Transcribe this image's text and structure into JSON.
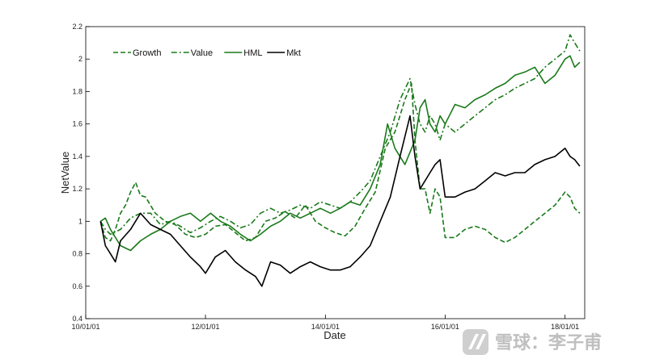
{
  "chart_data": {
    "type": "line",
    "xlabel": "Date",
    "ylabel": "NetValue",
    "xlim": [
      "2010-01-01",
      "2018-05-01"
    ],
    "ylim": [
      0.4,
      2.2
    ],
    "x_ticks": [
      {
        "date": "2010-01-01",
        "label": "10/01/01"
      },
      {
        "date": "2012-01-01",
        "label": "12/01/01"
      },
      {
        "date": "2014-01-01",
        "label": "14/01/01"
      },
      {
        "date": "2016-01-01",
        "label": "16/01/01"
      },
      {
        "date": "2018-01-01",
        "label": "18/01/01"
      }
    ],
    "y_ticks": [
      "0.4",
      "0.6",
      "0.8",
      "1",
      "1.2",
      "1.4",
      "1.6",
      "1.8",
      "2",
      "2.2"
    ],
    "grid": false,
    "legend_position": "top-left",
    "series": [
      {
        "name": "Growth",
        "style": "dashed",
        "color": "#1a7a1a",
        "points": [
          [
            "2010-04-01",
            1.0
          ],
          [
            "2010-05-01",
            0.9
          ],
          [
            "2010-06-01",
            0.88
          ],
          [
            "2010-07-01",
            0.95
          ],
          [
            "2010-08-01",
            1.05
          ],
          [
            "2010-09-01",
            1.1
          ],
          [
            "2010-10-01",
            1.18
          ],
          [
            "2010-11-01",
            1.24
          ],
          [
            "2010-12-01",
            1.16
          ],
          [
            "2011-01-01",
            1.15
          ],
          [
            "2011-03-01",
            1.05
          ],
          [
            "2011-05-01",
            1.0
          ],
          [
            "2011-07-01",
            0.98
          ],
          [
            "2011-09-01",
            0.92
          ],
          [
            "2011-11-01",
            0.9
          ],
          [
            "2012-01-01",
            0.92
          ],
          [
            "2012-03-01",
            0.97
          ],
          [
            "2012-05-01",
            0.98
          ],
          [
            "2012-07-01",
            0.93
          ],
          [
            "2012-09-01",
            0.88
          ],
          [
            "2012-11-01",
            0.9
          ],
          [
            "2013-01-01",
            1.0
          ],
          [
            "2013-03-01",
            1.02
          ],
          [
            "2013-05-01",
            1.06
          ],
          [
            "2013-07-01",
            1.02
          ],
          [
            "2013-09-01",
            1.1
          ],
          [
            "2013-11-01",
            1.0
          ],
          [
            "2014-01-01",
            0.96
          ],
          [
            "2014-03-01",
            0.93
          ],
          [
            "2014-05-01",
            0.91
          ],
          [
            "2014-07-01",
            0.97
          ],
          [
            "2014-09-01",
            1.08
          ],
          [
            "2014-11-01",
            1.18
          ],
          [
            "2015-01-01",
            1.45
          ],
          [
            "2015-03-01",
            1.55
          ],
          [
            "2015-05-01",
            1.75
          ],
          [
            "2015-06-10",
            1.85
          ],
          [
            "2015-07-01",
            1.5
          ],
          [
            "2015-08-01",
            1.2
          ],
          [
            "2015-09-01",
            1.2
          ],
          [
            "2015-10-01",
            1.05
          ],
          [
            "2015-11-01",
            1.2
          ],
          [
            "2015-12-01",
            1.15
          ],
          [
            "2016-01-01",
            0.9
          ],
          [
            "2016-03-01",
            0.9
          ],
          [
            "2016-05-01",
            0.95
          ],
          [
            "2016-07-01",
            0.97
          ],
          [
            "2016-09-01",
            0.95
          ],
          [
            "2016-11-01",
            0.9
          ],
          [
            "2017-01-01",
            0.87
          ],
          [
            "2017-03-01",
            0.9
          ],
          [
            "2017-05-01",
            0.95
          ],
          [
            "2017-07-01",
            1.0
          ],
          [
            "2017-09-01",
            1.05
          ],
          [
            "2017-11-01",
            1.1
          ],
          [
            "2018-01-01",
            1.18
          ],
          [
            "2018-02-01",
            1.15
          ],
          [
            "2018-03-01",
            1.08
          ],
          [
            "2018-04-01",
            1.05
          ]
        ]
      },
      {
        "name": "Value",
        "style": "dashdot",
        "color": "#1a7a1a",
        "points": [
          [
            "2010-04-01",
            1.0
          ],
          [
            "2010-05-01",
            0.95
          ],
          [
            "2010-06-01",
            0.92
          ],
          [
            "2010-08-01",
            0.95
          ],
          [
            "2010-10-01",
            1.02
          ],
          [
            "2010-12-01",
            1.05
          ],
          [
            "2011-02-01",
            1.05
          ],
          [
            "2011-04-01",
            0.98
          ],
          [
            "2011-06-01",
            1.0
          ],
          [
            "2011-08-01",
            0.97
          ],
          [
            "2011-10-01",
            0.93
          ],
          [
            "2011-12-01",
            0.96
          ],
          [
            "2012-02-01",
            1.0
          ],
          [
            "2012-04-01",
            1.03
          ],
          [
            "2012-06-01",
            1.0
          ],
          [
            "2012-08-01",
            0.96
          ],
          [
            "2012-10-01",
            0.98
          ],
          [
            "2012-12-01",
            1.05
          ],
          [
            "2013-02-01",
            1.08
          ],
          [
            "2013-04-01",
            1.05
          ],
          [
            "2013-06-01",
            1.07
          ],
          [
            "2013-08-01",
            1.1
          ],
          [
            "2013-10-01",
            1.08
          ],
          [
            "2013-12-01",
            1.12
          ],
          [
            "2014-02-01",
            1.1
          ],
          [
            "2014-04-01",
            1.08
          ],
          [
            "2014-06-01",
            1.12
          ],
          [
            "2014-08-01",
            1.18
          ],
          [
            "2014-10-01",
            1.25
          ],
          [
            "2014-12-01",
            1.4
          ],
          [
            "2015-02-01",
            1.55
          ],
          [
            "2015-04-01",
            1.75
          ],
          [
            "2015-06-01",
            1.88
          ],
          [
            "2015-07-01",
            1.72
          ],
          [
            "2015-08-01",
            1.6
          ],
          [
            "2015-09-01",
            1.55
          ],
          [
            "2015-10-01",
            1.65
          ],
          [
            "2015-11-01",
            1.6
          ],
          [
            "2015-12-01",
            1.5
          ],
          [
            "2016-01-01",
            1.6
          ],
          [
            "2016-03-01",
            1.55
          ],
          [
            "2016-05-01",
            1.6
          ],
          [
            "2016-07-01",
            1.65
          ],
          [
            "2016-09-01",
            1.7
          ],
          [
            "2016-11-01",
            1.75
          ],
          [
            "2017-01-01",
            1.78
          ],
          [
            "2017-03-01",
            1.82
          ],
          [
            "2017-05-01",
            1.85
          ],
          [
            "2017-07-01",
            1.88
          ],
          [
            "2017-09-01",
            1.95
          ],
          [
            "2017-11-01",
            2.0
          ],
          [
            "2018-01-01",
            2.05
          ],
          [
            "2018-02-01",
            2.15
          ],
          [
            "2018-03-01",
            2.1
          ],
          [
            "2018-04-01",
            2.05
          ]
        ]
      },
      {
        "name": "HML",
        "style": "solid",
        "color": "#1a7a1a",
        "points": [
          [
            "2010-04-01",
            1.0
          ],
          [
            "2010-05-01",
            1.02
          ],
          [
            "2010-06-01",
            0.95
          ],
          [
            "2010-08-01",
            0.85
          ],
          [
            "2010-10-01",
            0.82
          ],
          [
            "2010-12-01",
            0.88
          ],
          [
            "2011-02-01",
            0.92
          ],
          [
            "2011-04-01",
            0.95
          ],
          [
            "2011-06-01",
            1.0
          ],
          [
            "2011-08-01",
            1.03
          ],
          [
            "2011-10-01",
            1.05
          ],
          [
            "2011-12-01",
            1.0
          ],
          [
            "2012-02-01",
            1.05
          ],
          [
            "2012-04-01",
            1.0
          ],
          [
            "2012-06-01",
            0.97
          ],
          [
            "2012-08-01",
            0.92
          ],
          [
            "2012-10-01",
            0.88
          ],
          [
            "2012-12-01",
            0.92
          ],
          [
            "2013-02-01",
            0.97
          ],
          [
            "2013-04-01",
            1.0
          ],
          [
            "2013-06-01",
            1.05
          ],
          [
            "2013-08-01",
            1.02
          ],
          [
            "2013-10-01",
            1.05
          ],
          [
            "2013-12-01",
            1.08
          ],
          [
            "2014-02-01",
            1.05
          ],
          [
            "2014-04-01",
            1.08
          ],
          [
            "2014-06-01",
            1.12
          ],
          [
            "2014-08-01",
            1.1
          ],
          [
            "2014-10-01",
            1.2
          ],
          [
            "2014-12-01",
            1.35
          ],
          [
            "2015-01-15",
            1.6
          ],
          [
            "2015-03-01",
            1.45
          ],
          [
            "2015-05-01",
            1.35
          ],
          [
            "2015-07-01",
            1.5
          ],
          [
            "2015-08-01",
            1.7
          ],
          [
            "2015-09-01",
            1.75
          ],
          [
            "2015-10-01",
            1.6
          ],
          [
            "2015-11-01",
            1.55
          ],
          [
            "2015-12-01",
            1.65
          ],
          [
            "2016-01-01",
            1.6
          ],
          [
            "2016-03-01",
            1.72
          ],
          [
            "2016-05-01",
            1.7
          ],
          [
            "2016-07-01",
            1.75
          ],
          [
            "2016-09-01",
            1.78
          ],
          [
            "2016-11-01",
            1.82
          ],
          [
            "2017-01-01",
            1.85
          ],
          [
            "2017-03-01",
            1.9
          ],
          [
            "2017-05-01",
            1.92
          ],
          [
            "2017-07-01",
            1.95
          ],
          [
            "2017-09-01",
            1.85
          ],
          [
            "2017-11-01",
            1.9
          ],
          [
            "2018-01-01",
            2.0
          ],
          [
            "2018-02-01",
            2.02
          ],
          [
            "2018-03-01",
            1.95
          ],
          [
            "2018-04-01",
            1.98
          ]
        ]
      },
      {
        "name": "Mkt",
        "style": "solid",
        "color": "#000000",
        "points": [
          [
            "2010-04-01",
            1.0
          ],
          [
            "2010-05-01",
            0.85
          ],
          [
            "2010-06-01",
            0.8
          ],
          [
            "2010-07-01",
            0.75
          ],
          [
            "2010-08-01",
            0.88
          ],
          [
            "2010-10-01",
            0.95
          ],
          [
            "2010-12-01",
            1.05
          ],
          [
            "2011-02-01",
            0.98
          ],
          [
            "2011-04-01",
            0.95
          ],
          [
            "2011-06-01",
            0.92
          ],
          [
            "2011-08-01",
            0.85
          ],
          [
            "2011-10-01",
            0.78
          ],
          [
            "2011-12-01",
            0.72
          ],
          [
            "2012-01-01",
            0.68
          ],
          [
            "2012-03-01",
            0.78
          ],
          [
            "2012-05-01",
            0.82
          ],
          [
            "2012-07-01",
            0.75
          ],
          [
            "2012-09-01",
            0.7
          ],
          [
            "2012-11-01",
            0.66
          ],
          [
            "2012-12-10",
            0.6
          ],
          [
            "2013-02-01",
            0.75
          ],
          [
            "2013-04-01",
            0.73
          ],
          [
            "2013-06-01",
            0.68
          ],
          [
            "2013-08-01",
            0.72
          ],
          [
            "2013-10-01",
            0.75
          ],
          [
            "2013-12-01",
            0.72
          ],
          [
            "2014-02-01",
            0.7
          ],
          [
            "2014-04-01",
            0.7
          ],
          [
            "2014-06-01",
            0.72
          ],
          [
            "2014-08-01",
            0.78
          ],
          [
            "2014-10-01",
            0.85
          ],
          [
            "2014-12-01",
            1.0
          ],
          [
            "2015-02-01",
            1.15
          ],
          [
            "2015-04-01",
            1.4
          ],
          [
            "2015-06-01",
            1.65
          ],
          [
            "2015-07-01",
            1.4
          ],
          [
            "2015-08-01",
            1.2
          ],
          [
            "2015-09-01",
            1.25
          ],
          [
            "2015-10-01",
            1.3
          ],
          [
            "2015-11-01",
            1.35
          ],
          [
            "2015-12-01",
            1.38
          ],
          [
            "2016-01-01",
            1.15
          ],
          [
            "2016-03-01",
            1.15
          ],
          [
            "2016-05-01",
            1.18
          ],
          [
            "2016-07-01",
            1.2
          ],
          [
            "2016-09-01",
            1.25
          ],
          [
            "2016-11-01",
            1.3
          ],
          [
            "2017-01-01",
            1.28
          ],
          [
            "2017-03-01",
            1.3
          ],
          [
            "2017-05-01",
            1.3
          ],
          [
            "2017-07-01",
            1.35
          ],
          [
            "2017-09-01",
            1.38
          ],
          [
            "2017-11-01",
            1.4
          ],
          [
            "2018-01-01",
            1.45
          ],
          [
            "2018-02-01",
            1.4
          ],
          [
            "2018-03-01",
            1.38
          ],
          [
            "2018-04-01",
            1.34
          ]
        ]
      }
    ]
  },
  "watermark": {
    "text": "雪球：李子甫",
    "icon": "snowball-logo-icon"
  }
}
